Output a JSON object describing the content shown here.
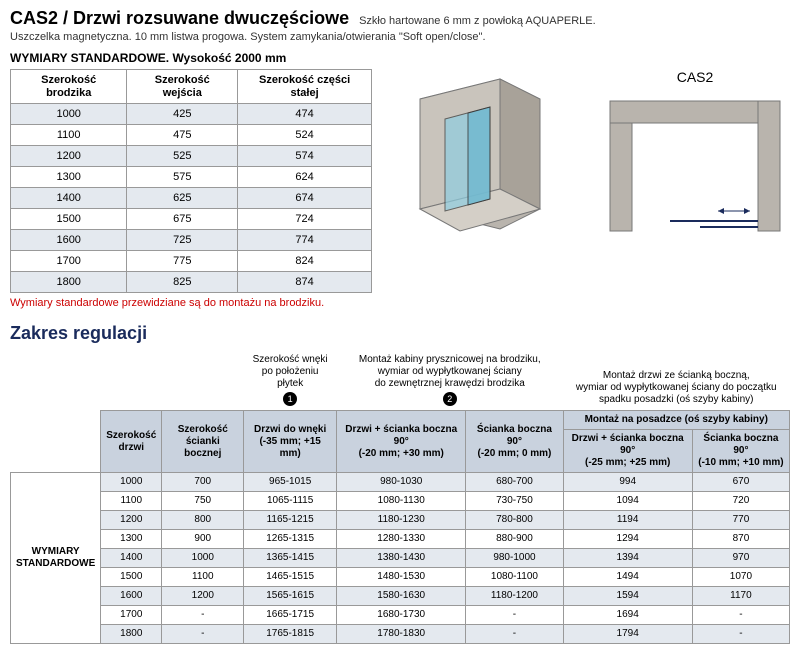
{
  "header": {
    "title": "CAS2 / Drzwi rozsuwane dwuczęściowe",
    "title_desc": "Szkło hartowane 6 mm z powłoką AQUAPERLE.",
    "subdesc": "Uszczelka magnetyczna. 10 mm listwa progowa. System zamykania/otwierania \"Soft open/close\".",
    "std_header": "WYMIARY STANDARDOWE. Wysokość 2000 mm"
  },
  "dim_table": {
    "headers": [
      "Szerokość brodzika",
      "Szerokość wejścia",
      "Szerokość części stałej"
    ],
    "rows": [
      [
        "1000",
        "425",
        "474"
      ],
      [
        "1100",
        "475",
        "524"
      ],
      [
        "1200",
        "525",
        "574"
      ],
      [
        "1300",
        "575",
        "624"
      ],
      [
        "1400",
        "625",
        "674"
      ],
      [
        "1500",
        "675",
        "724"
      ],
      [
        "1600",
        "725",
        "774"
      ],
      [
        "1700",
        "775",
        "824"
      ],
      [
        "1800",
        "825",
        "874"
      ]
    ],
    "footnote": "Wymiary standardowe przewidziane są do montażu na brodziku."
  },
  "diagrams": {
    "label_right": "CAS2"
  },
  "section2_header": "Zakres regulacji",
  "reg": {
    "side_label": "WYMIARY\nSTANDARDOWE",
    "group_heads": {
      "col1": "Szerokość wnęki\npo położeniu płytek",
      "col2": "Montaż kabiny prysznicowej na brodziku,\nwymiar od wypłytkowanej ściany\ndo zewnętrznej krawędzi brodzika",
      "col3": "Montaż drzwi ze ścianką boczną,\nwymiar od wypłytkowanej ściany do początku\nspadku posadzki (oś szyby kabiny)"
    },
    "sub_row": {
      "szer_drzwi": "Szerokość\ndrzwi",
      "szer_scianki": "Szerokość\nścianki bocznej",
      "drzwi_wneki": "Drzwi do wnęki\n(-35 mm; +15 mm)",
      "drzwi_sc90_b": "Drzwi + ścianka boczna 90°\n(-20 mm; +30 mm)",
      "sc90_b": "Ścianka boczna 90°\n(-20 mm; 0 mm)",
      "montaz_posadzka": "Montaż na posadzce (oś szyby kabiny)",
      "drzwi_sc90_p": "Drzwi + ścianka boczna 90°\n(-25 mm; +25 mm)",
      "sc90_p": "Ścianka boczna 90°\n(-10 mm; +10 mm)"
    },
    "badges": {
      "b1": "1",
      "b2": "2"
    },
    "rows": [
      [
        "1000",
        "700",
        "965-1015",
        "980-1030",
        "680-700",
        "994",
        "670"
      ],
      [
        "1100",
        "750",
        "1065-1115",
        "1080-1130",
        "730-750",
        "1094",
        "720"
      ],
      [
        "1200",
        "800",
        "1165-1215",
        "1180-1230",
        "780-800",
        "1194",
        "770"
      ],
      [
        "1300",
        "900",
        "1265-1315",
        "1280-1330",
        "880-900",
        "1294",
        "870"
      ],
      [
        "1400",
        "1000",
        "1365-1415",
        "1380-1430",
        "980-1000",
        "1394",
        "970"
      ],
      [
        "1500",
        "1100",
        "1465-1515",
        "1480-1530",
        "1080-1100",
        "1494",
        "1070"
      ],
      [
        "1600",
        "1200",
        "1565-1615",
        "1580-1630",
        "1180-1200",
        "1594",
        "1170"
      ],
      [
        "1700",
        "-",
        "1665-1715",
        "1680-1730",
        "-",
        "1694",
        "-"
      ],
      [
        "1800",
        "-",
        "1765-1815",
        "1780-1830",
        "-",
        "1794",
        "-"
      ]
    ]
  },
  "colors": {
    "alt_row": "#e4e9ef",
    "sub_head": "#c9d2de",
    "section_header": "#1a2b5c",
    "footnote": "#cc0000",
    "wall_fill": "#b9b4ad",
    "wall_dark": "#8b867f",
    "glass": "#8fcde0",
    "line": "#1a2b5c"
  }
}
